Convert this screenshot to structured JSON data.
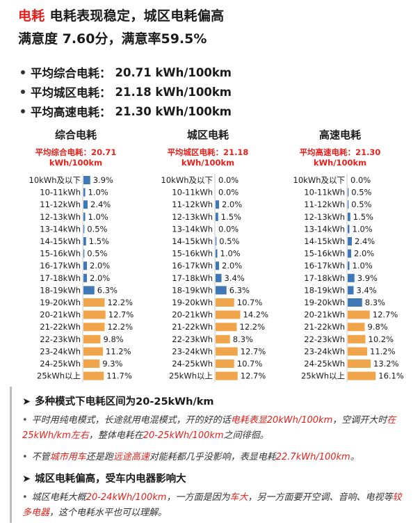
{
  "header": {
    "title_highlight": "电耗",
    "title_rest": "电耗表现稳定，城区电耗偏高",
    "subtitle": "满意度 7.60分，满意率59.5%"
  },
  "averages": [
    {
      "label": "平均综合电耗：",
      "value": "20.71 kWh/100km"
    },
    {
      "label": "平均城区电耗：",
      "value": "21.18 kWh/100km"
    },
    {
      "label": "平均高速电耗：",
      "value": "21.30 kWh/100km"
    }
  ],
  "colors": {
    "blue": "#3f78b4",
    "orange": "#f0a54a",
    "highlight": "#e8201c"
  },
  "chart_data": [
    {
      "type": "bar",
      "title": "综合电耗",
      "subtitle": "平均综合电耗：20.71 kWh/100km",
      "categories": [
        "10kWh及以下",
        "10-11kWh",
        "11-12kWh",
        "12-13kWh",
        "13-14kWh",
        "14-15kWh",
        "15-16kWh",
        "16-17kWh",
        "17-18kWh",
        "18-19kWh",
        "19-20kWh",
        "20-21kWh",
        "21-22kWh",
        "22-23kWh",
        "23-24kWh",
        "24-25kWh",
        "25kWh以上"
      ],
      "values": [
        3.9,
        1.0,
        2.4,
        1.0,
        0.5,
        1.5,
        0.5,
        2.0,
        2.0,
        6.3,
        12.2,
        12.7,
        12.2,
        9.8,
        11.2,
        9.3,
        11.7
      ],
      "labels": [
        "3.9%",
        "1.0%",
        "2.4%",
        "1.0%",
        "0.5%",
        "1.5%",
        "0.5%",
        "2.0%",
        "2.0%",
        "6.3%",
        "12.2%",
        "12.7%",
        "12.2%",
        "9.8%",
        "11.2%",
        "9.3%",
        "11.7%"
      ],
      "orange_from_index": 10
    },
    {
      "type": "bar",
      "title": "城区电耗",
      "subtitle": "平均城区电耗：21.18 kWh/100km",
      "categories": [
        "10kWh及以下",
        "10-11kWh",
        "11-12kWh",
        "12-13kWh",
        "13-14kWh",
        "14-15kWh",
        "15-16kWh",
        "16-17kWh",
        "17-18kWh",
        "18-19kWh",
        "19-20kWh",
        "20-21kWh",
        "21-22kWh",
        "22-23kWh",
        "23-24kWh",
        "24-25kWh",
        "25kWh以上"
      ],
      "values": [
        0.0,
        0.0,
        2.0,
        1.5,
        0.0,
        0.5,
        1.0,
        2.0,
        3.4,
        6.3,
        10.7,
        14.2,
        12.2,
        8.3,
        12.7,
        10.7,
        12.7
      ],
      "labels": [
        "0.0%",
        "0.0%",
        "2.0%",
        "1.5%",
        "0.0%",
        "0.5%",
        "1.0%",
        "2.0%",
        "3.4%",
        "6.3%",
        "10.7%",
        "14.2%",
        "12.2%",
        "8.3%",
        "12.7%",
        "10.7%",
        "12.7%"
      ],
      "orange_from_index": 10
    },
    {
      "type": "bar",
      "title": "高速电耗",
      "subtitle": "平均高速电耗：21.30 kWh/100km",
      "categories": [
        "10kWh及以下",
        "10-11kWh",
        "11-12kWh",
        "12-13kWh",
        "13-14kWh",
        "14-15kWh",
        "15-16kWh",
        "16-17kWh",
        "17-18kWh",
        "18-19kWh",
        "19-20kWh",
        "20-21kWh",
        "21-22kWh",
        "22-23kWh",
        "23-24kWh",
        "24-25kWh",
        "25kWh以上"
      ],
      "values": [
        0.0,
        0.5,
        0.5,
        1.5,
        1.0,
        2.4,
        2.0,
        1.0,
        3.9,
        3.4,
        8.3,
        12.7,
        9.8,
        10.2,
        11.2,
        13.2,
        16.1
      ],
      "labels": [
        "0.0%",
        "0.5%",
        "0.5%",
        "1.5%",
        "1.0%",
        "2.4%",
        "2.0%",
        "1.0%",
        "3.9%",
        "3.4%",
        "8.3%",
        "12.7%",
        "9.8%",
        "10.2%",
        "11.2%",
        "13.2%",
        "16.1%"
      ],
      "orange_from_index": 11
    }
  ],
  "notes": {
    "h1": "多种模式下电耗区间为20-25kWh/km",
    "b1_s1": "平时用纯电模式，长途就用电混模式，开的好的话",
    "b1_r1": "电耗表显20kWh/100km",
    "b1_s2": "，空调开大时",
    "b1_r2": "在25kWh/km左右",
    "b1_s3": "，整体电耗在",
    "b1_r3": "20-25kWh/100km",
    "b1_s4": "之间徘徊。",
    "b2_s1": "不管",
    "b2_r1": "城市用车",
    "b2_s2": "还是跑",
    "b2_r2": "远途高速",
    "b2_s3": "对能耗都几乎没影响，表显电耗",
    "b2_r3": "22.7kWh/100km",
    "b2_s4": "。",
    "h2": "城区电耗偏高，受车内电器影响大",
    "b3_s1": "城区电耗大概",
    "b3_r1": "20-24kWh/100km",
    "b3_s2": "，一方面是因为",
    "b3_r2": "车大",
    "b3_s3": "，另一方面要开空调、音响、电视等",
    "b3_r3": "较多电器",
    "b3_s4": "，这个电耗水平也可以理解。",
    "bullet": "•",
    "chevron": "➤"
  }
}
